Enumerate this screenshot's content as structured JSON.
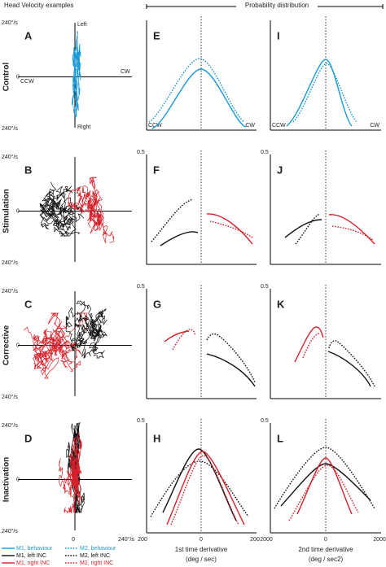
{
  "header": {
    "left": "Head Velocity examples",
    "right": "Probability distribution"
  },
  "panels": [
    "A",
    "B",
    "C",
    "D",
    "E",
    "F",
    "G",
    "H",
    "I",
    "J",
    "K",
    "L"
  ],
  "rows": [
    "Control",
    "Stimulation",
    "Corrective",
    "Inactivation"
  ],
  "velocity": {
    "top": "240°/s",
    "bottom": "240°/s",
    "zero": "0",
    "up": "Left",
    "down": "Right",
    "left": "CCW",
    "right": "CW",
    "right_end": "240°/s"
  },
  "distribution": {
    "ymax": "0.5",
    "ccw": "CCW",
    "cw": "CW",
    "first_axis": [
      "200",
      "0",
      "200"
    ],
    "second_axis": [
      "2000",
      "0",
      "2000"
    ],
    "first_label": "1st time derivative",
    "first_unit": "(deg / sec)",
    "second_label": "2nd time derivative",
    "second_unit": "(deg / sec2)"
  },
  "legend": [
    "M1, behaviour",
    "M2, behaviour",
    "M1, left INC",
    "M2, left INC",
    "M1, right INC",
    "M2, right INC"
  ]
}
